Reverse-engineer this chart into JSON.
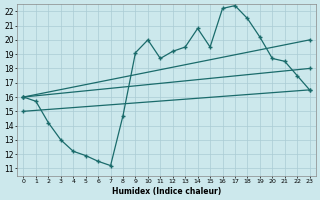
{
  "xlabel": "Humidex (Indice chaleur)",
  "bg_color": "#cce8ec",
  "line_color": "#1a6b6b",
  "grid_color": "#aaccd4",
  "xlim": [
    -0.5,
    23.5
  ],
  "ylim": [
    10.5,
    22.5
  ],
  "yticks": [
    11,
    12,
    13,
    14,
    15,
    16,
    17,
    18,
    19,
    20,
    21,
    22
  ],
  "xticks": [
    0,
    1,
    2,
    3,
    4,
    5,
    6,
    7,
    8,
    9,
    10,
    11,
    12,
    13,
    14,
    15,
    16,
    17,
    18,
    19,
    20,
    21,
    22,
    23
  ],
  "line_zigzag": {
    "x": [
      0,
      1,
      2,
      3,
      4,
      5,
      6,
      7,
      8,
      9,
      10,
      11,
      12,
      13,
      14,
      15,
      16,
      17,
      18,
      19,
      20,
      21,
      22,
      23
    ],
    "y": [
      16.0,
      15.7,
      14.2,
      13.0,
      12.2,
      11.9,
      11.5,
      11.2,
      14.7,
      19.1,
      20.0,
      18.7,
      19.2,
      19.5,
      20.8,
      19.5,
      22.2,
      22.4,
      21.5,
      20.2,
      18.7,
      18.5,
      17.5,
      16.5
    ]
  },
  "line_upper": {
    "x": [
      0,
      23
    ],
    "y": [
      16.0,
      20.0
    ]
  },
  "line_mid": {
    "x": [
      0,
      23
    ],
    "y": [
      16.0,
      18.0
    ]
  },
  "line_lower": {
    "x": [
      0,
      23
    ],
    "y": [
      15.0,
      16.5
    ]
  }
}
